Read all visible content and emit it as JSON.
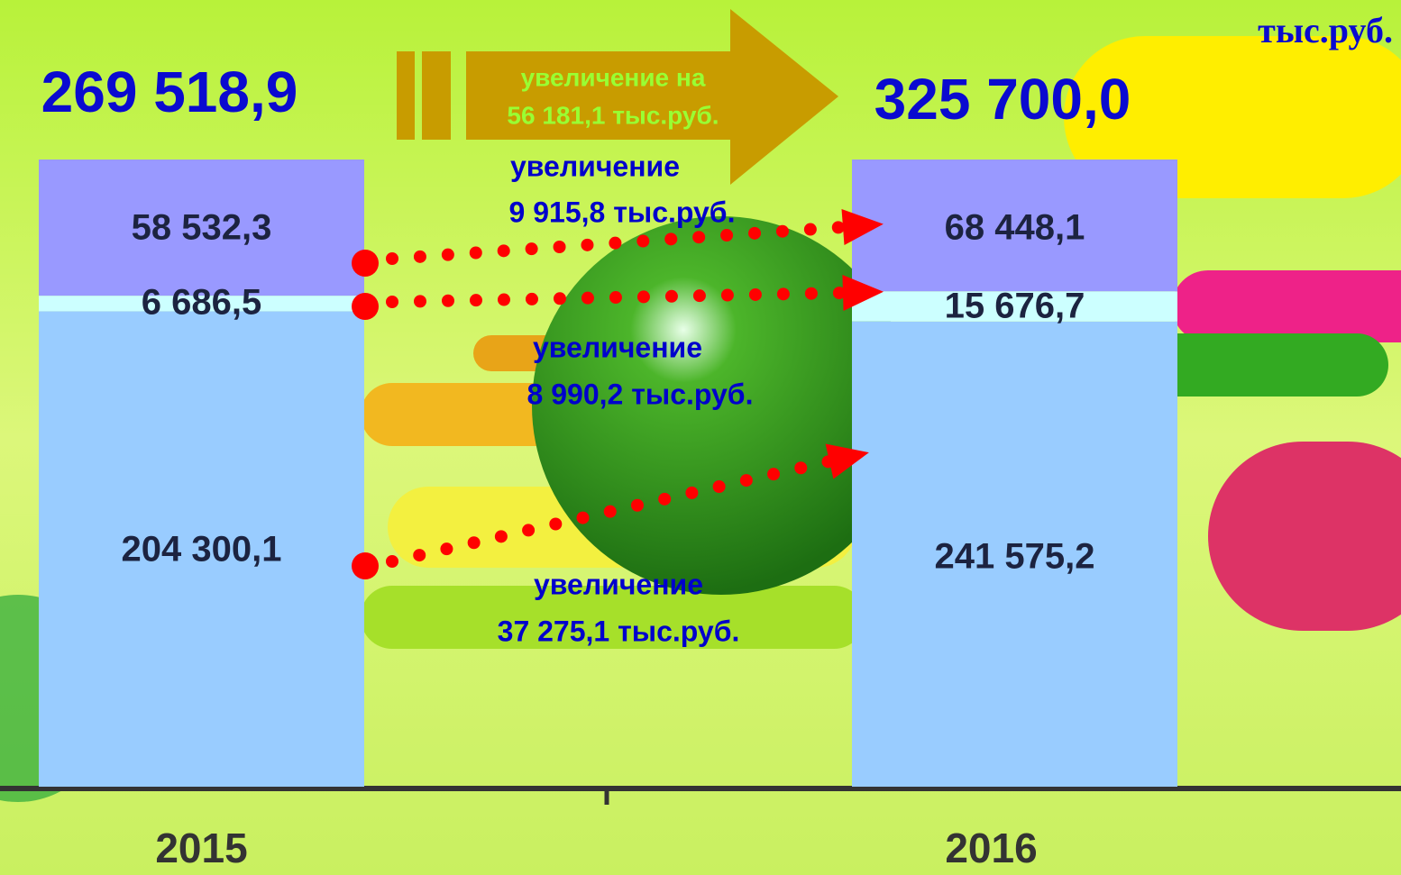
{
  "chart_data": {
    "type": "bar",
    "stacked": "percent",
    "unit": "тыс.руб.",
    "categories": [
      "2015",
      "2016"
    ],
    "series": [
      {
        "color": "#99ccff",
        "values": [
          204300.1,
          241575.2
        ],
        "value_labels": [
          "204 300,1",
          "241 575,2"
        ]
      },
      {
        "color": "#ccffff",
        "values": [
          6686.5,
          15676.7
        ],
        "value_labels": [
          "6 686,5",
          "15 676,7"
        ]
      },
      {
        "color": "#9999ff",
        "values": [
          58532.3,
          68448.1
        ],
        "value_labels": [
          "58 532,3",
          "68 448,1"
        ]
      }
    ],
    "totals": [
      269518.9,
      325700.0
    ],
    "total_labels": [
      "269 518,9",
      "325 700,0"
    ],
    "total_change": [
      "увеличение на",
      "56 181,1 тыс.руб."
    ],
    "annotations": [
      [
        "увеличение",
        "9 915,8 тыс.руб."
      ],
      [
        "увеличение",
        "8 990,2 тыс.руб."
      ],
      [
        "увеличение",
        "37 275,1 тыс.руб."
      ]
    ]
  }
}
